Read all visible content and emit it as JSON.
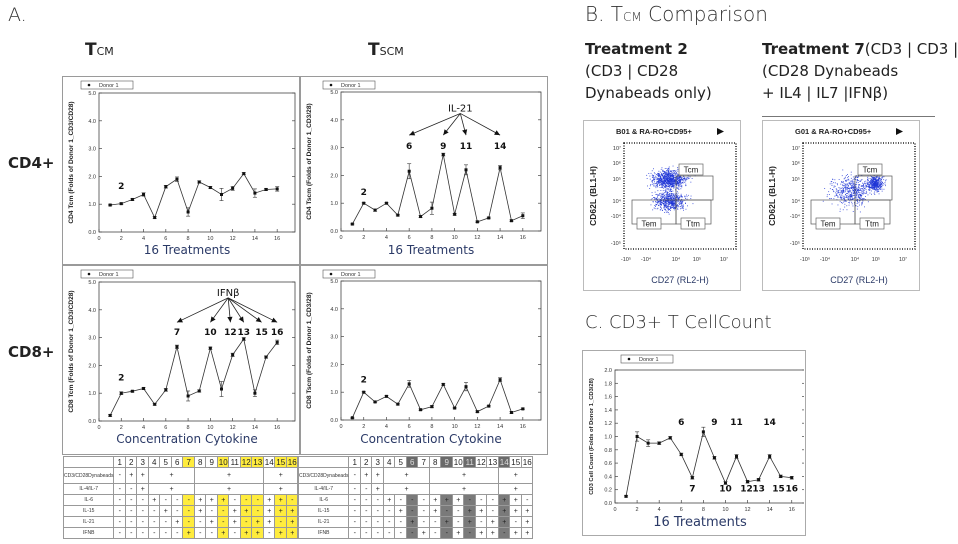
{
  "panel_a": {
    "letter": "A.",
    "col_tcm": {
      "main": "T",
      "sub": "CM"
    },
    "col_tscm": {
      "main": "T",
      "sub": "SCM"
    },
    "row_cd4": "CD4+",
    "row_cd8": "CD8+"
  },
  "panel_b": {
    "title_prefix": "B. T",
    "title_sub": "CM",
    "title_suffix": " Comparison",
    "t2_bold": "Treatment 2",
    "t2_line2": "(CD3 | CD28",
    "t2_line3": "Dynabeads only)",
    "t7_bold": "Treatment 7",
    "t7_rest1": "(CD3 | CD3 |",
    "t7_line2": "(CD28 Dynabeads",
    "t7_line3": "+ IL4 | IL7 |IFNβ)",
    "flow_plots": [
      {
        "title": "B01 & RA-RO+CD95+",
        "pattern": "dense-wide"
      },
      {
        "title": "G01 & RA-RO+CD95+",
        "pattern": "tcm-enriched"
      }
    ],
    "flow_xlabel": "CD27 (RL2-H)",
    "flow_ylabel": "CD62L (BL1-H)",
    "flow_xticks": [
      "-10⁵",
      "-10⁴",
      "10⁴",
      "10⁵",
      "10⁷"
    ],
    "flow_yticks": [
      "10⁷",
      "10⁶",
      "10⁵",
      "10⁴",
      "-10⁴",
      "-10⁵"
    ],
    "gates": [
      "Tcm",
      "Tem",
      "Ttm"
    ],
    "dot_color": "#1f35d6"
  },
  "panel_c": {
    "title": "C. CD3+ T CellCount"
  },
  "chart_data": [
    {
      "id": "cd4-tcm",
      "type": "line",
      "legend": "Donor 1",
      "ylabel": "CD4 Tcm (Folds of Donor 1_CD3/CD28)",
      "xlabel": "16 Treatments",
      "ylim": [
        0,
        5
      ],
      "yticks": [
        "0.0",
        "1.0",
        "2.0",
        "3.0",
        "4.0",
        "5.0"
      ],
      "ytick_values": [
        0,
        1,
        2,
        3,
        4,
        5
      ],
      "xlim": [
        0,
        17.6
      ],
      "xticks": [
        0,
        2,
        4,
        6,
        8,
        10,
        12,
        14,
        16
      ],
      "x": [
        1,
        2,
        3,
        4,
        5,
        6,
        7,
        8,
        9,
        10,
        11,
        12,
        13,
        14,
        15,
        16
      ],
      "values": [
        0.97,
        1.02,
        1.17,
        1.35,
        0.52,
        1.63,
        1.9,
        0.72,
        1.8,
        1.6,
        1.35,
        1.57,
        2.1,
        1.4,
        1.53,
        1.55
      ],
      "errors": [
        0.03,
        0.03,
        0.04,
        0.06,
        0.03,
        0.05,
        0.08,
        0.15,
        0.04,
        0.03,
        0.22,
        0.07,
        0.04,
        0.15,
        0.04,
        0.08
      ],
      "labels": [
        {
          "text": "2",
          "x": 2,
          "y": 1.55
        }
      ],
      "arrows": []
    },
    {
      "id": "cd4-tscm",
      "type": "line",
      "legend": "Donor 1",
      "ylabel": "CD4 Tscm (Folds of Donor 1_CD3/28)",
      "xlabel": "16 Treatments",
      "ylim": [
        0,
        5
      ],
      "yticks": [
        "0.0",
        "1.0",
        "2.0",
        "3.0",
        "4.0",
        "5.0"
      ],
      "ytick_values": [
        0,
        1,
        2,
        3,
        4,
        5
      ],
      "xlim": [
        0,
        17.6
      ],
      "xticks": [
        0,
        2,
        4,
        6,
        8,
        10,
        12,
        14,
        16
      ],
      "x": [
        1,
        2,
        3,
        4,
        5,
        6,
        7,
        8,
        9,
        10,
        11,
        12,
        13,
        14,
        15,
        16
      ],
      "values": [
        0.25,
        1.0,
        0.75,
        1.0,
        0.57,
        2.15,
        0.52,
        0.82,
        2.75,
        0.6,
        2.2,
        0.33,
        0.47,
        2.28,
        0.37,
        0.55
      ],
      "errors": [
        0.03,
        0.03,
        0.04,
        0.03,
        0.03,
        0.27,
        0.03,
        0.22,
        0.05,
        0.03,
        0.18,
        0.03,
        0.03,
        0.08,
        0.03,
        0.1
      ],
      "labels": [
        {
          "text": "2",
          "x": 2,
          "y": 1.3
        }
      ],
      "arrows": [
        {
          "source": "IL-21",
          "sx": 10.5,
          "sy": 4.3,
          "targets": [
            {
              "text": "6",
              "x": 6
            },
            {
              "text": "9",
              "x": 9
            },
            {
              "text": "11",
              "x": 11
            },
            {
              "text": "14",
              "x": 14
            }
          ],
          "head_y": 3.45,
          "num_y": 2.95
        }
      ]
    },
    {
      "id": "cd8-tcm",
      "type": "line",
      "legend": "Donor 1",
      "ylabel": "CD8 Tcm (Folds of Donor 1_CD3/CD28)",
      "xlabel": "Concentration Cytokine",
      "ylim": [
        0,
        5
      ],
      "yticks": [
        "0.0",
        "1.0",
        "2.0",
        "3.0",
        "4.0",
        "5.0"
      ],
      "ytick_values": [
        0,
        1,
        2,
        3,
        4,
        5
      ],
      "xlim": [
        0,
        17.6
      ],
      "xticks": [
        0,
        2,
        4,
        6,
        8,
        10,
        12,
        14,
        16
      ],
      "x": [
        1,
        2,
        3,
        4,
        5,
        6,
        7,
        8,
        9,
        10,
        11,
        12,
        13,
        14,
        15,
        16
      ],
      "values": [
        0.2,
        1.0,
        1.07,
        1.17,
        0.6,
        1.12,
        2.67,
        0.9,
        1.08,
        2.62,
        1.15,
        2.38,
        2.95,
        1.0,
        2.3,
        2.83
      ],
      "errors": [
        0.03,
        0.05,
        0.03,
        0.04,
        0.03,
        0.05,
        0.06,
        0.18,
        0.04,
        0.04,
        0.27,
        0.06,
        0.05,
        0.12,
        0.04,
        0.08
      ],
      "labels": [
        {
          "text": "2",
          "x": 2,
          "y": 1.45
        }
      ],
      "arrows": [
        {
          "source": "IFNβ",
          "sx": 11.6,
          "sy": 4.5,
          "targets": [
            {
              "text": "7",
              "x": 7
            },
            {
              "text": "10",
              "x": 10
            },
            {
              "text": "12",
              "x": 11.8
            },
            {
              "text": "13",
              "x": 13
            },
            {
              "text": "15",
              "x": 14.6
            },
            {
              "text": "16",
              "x": 16
            }
          ],
          "head_y": 3.55,
          "num_y": 3.1
        }
      ]
    },
    {
      "id": "cd8-tscm",
      "type": "line",
      "legend": "Donor 1",
      "ylabel": "CD8 Tscm (Folds of Donor 1_CD3/28)",
      "xlabel": "Concentration Cytokine",
      "ylim": [
        0,
        5
      ],
      "yticks": [
        "0.0",
        "1.0",
        "2.0",
        "3.0",
        "4.0",
        "5.0"
      ],
      "ytick_values": [
        0,
        1,
        2,
        3,
        4,
        5
      ],
      "xlim": [
        0,
        17.6
      ],
      "xticks": [
        0,
        2,
        4,
        6,
        8,
        10,
        12,
        14,
        16
      ],
      "x": [
        1,
        2,
        3,
        4,
        5,
        6,
        7,
        8,
        9,
        10,
        11,
        12,
        13,
        14,
        15,
        16
      ],
      "values": [
        0.08,
        1.0,
        0.65,
        0.85,
        0.57,
        1.3,
        0.37,
        0.48,
        1.28,
        0.43,
        1.2,
        0.3,
        0.5,
        1.45,
        0.27,
        0.4
      ],
      "errors": [
        0.02,
        0.03,
        0.03,
        0.03,
        0.03,
        0.12,
        0.03,
        0.04,
        0.03,
        0.03,
        0.15,
        0.03,
        0.03,
        0.07,
        0.03,
        0.03
      ],
      "labels": [
        {
          "text": "2",
          "x": 2,
          "y": 1.35
        }
      ],
      "arrows": []
    },
    {
      "id": "cd3-count",
      "type": "line",
      "legend": "Donor 1",
      "ylabel": "CD3 Cell Count (Folds of Donor 1_CD3/28)",
      "xlabel": "16 Treatments",
      "ylim": [
        0,
        2
      ],
      "yticks": [
        "0.0",
        "0.2",
        "0.4",
        "0.6",
        "0.8",
        "1.0",
        "1.2",
        "1.4",
        "1.6",
        "1.8",
        "2.0"
      ],
      "ytick_values": [
        0,
        0.2,
        0.4,
        0.6,
        0.8,
        1.0,
        1.2,
        1.4,
        1.6,
        1.8,
        2.0
      ],
      "xlim": [
        0,
        17.2
      ],
      "xticks": [
        0,
        2,
        4,
        6,
        8,
        10,
        12,
        14,
        16
      ],
      "x": [
        1,
        2,
        3,
        4,
        5,
        6,
        7,
        8,
        9,
        10,
        11,
        12,
        13,
        14,
        15,
        16
      ],
      "values": [
        0.1,
        1.0,
        0.9,
        0.9,
        0.98,
        0.73,
        0.38,
        1.07,
        0.68,
        0.3,
        0.7,
        0.32,
        0.35,
        0.7,
        0.4,
        0.38
      ],
      "errors": [
        0.01,
        0.07,
        0.05,
        0.02,
        0.02,
        0.02,
        0.02,
        0.07,
        0.02,
        0.02,
        0.03,
        0.02,
        0.02,
        0.03,
        0.02,
        0.02
      ],
      "labels": [
        {
          "text": "6",
          "x": 6,
          "y": 1.17
        },
        {
          "text": "9",
          "x": 9,
          "y": 1.17
        },
        {
          "text": "11",
          "x": 11,
          "y": 1.17
        },
        {
          "text": "14",
          "x": 14,
          "y": 1.17
        },
        {
          "text": "7",
          "x": 7,
          "y": 0.17
        },
        {
          "text": "10",
          "x": 10,
          "y": 0.17
        },
        {
          "text": "12",
          "x": 11.9,
          "y": 0.17
        },
        {
          "text": "13",
          "x": 13,
          "y": 0.17
        },
        {
          "text": "15",
          "x": 14.8,
          "y": 0.17
        },
        {
          "text": "16",
          "x": 16,
          "y": 0.17
        }
      ],
      "arrows": []
    }
  ],
  "tables": [
    {
      "highlight": [
        7,
        10,
        12,
        13,
        15,
        16
      ],
      "highlight_color": "#ffec3d",
      "columns": [
        "1",
        "2",
        "3",
        "4",
        "5",
        "6",
        "7",
        "8",
        "9",
        "10",
        "11",
        "12",
        "13",
        "14",
        "15",
        "16"
      ],
      "grouped_rows": [
        {
          "label": "CD3/CD28Dynabeads",
          "cells": [
            "-",
            "+",
            "+",
            "+",
            "+",
            "+"
          ]
        },
        {
          "label": "IL-4/IL-7",
          "cells": [
            "-",
            "-",
            "+",
            "+",
            "+",
            "+"
          ]
        }
      ],
      "rows": [
        {
          "label": "IL-6",
          "cells": [
            "-",
            "-",
            "-",
            "+",
            "-",
            "-",
            "-",
            "+",
            "+",
            "+",
            "-",
            "-",
            "-",
            "+",
            "+",
            "-"
          ]
        },
        {
          "label": "IL-15",
          "cells": [
            "-",
            "-",
            "-",
            "-",
            "+",
            "-",
            "-",
            "+",
            "-",
            "-",
            "+",
            "+",
            "-",
            "+",
            "+",
            "+"
          ]
        },
        {
          "label": "IL-21",
          "cells": [
            "-",
            "-",
            "-",
            "-",
            "-",
            "+",
            "-",
            "-",
            "+",
            "-",
            "+",
            "-",
            "+",
            "+",
            "-",
            "+"
          ]
        },
        {
          "label": "IFNB",
          "cells": [
            "-",
            "-",
            "-",
            "-",
            "-",
            "-",
            "+",
            "-",
            "-",
            "+",
            "-",
            "+",
            "+",
            "-",
            "+",
            "+"
          ]
        }
      ]
    },
    {
      "highlight": [
        6,
        9,
        11,
        14
      ],
      "highlight_color": "#7a7a7a",
      "columns": [
        "1",
        "2",
        "3",
        "4",
        "5",
        "6",
        "7",
        "8",
        "9",
        "10",
        "11",
        "12",
        "13",
        "14",
        "15",
        "16"
      ],
      "grouped_rows": [
        {
          "label": "CD3/CD28Dynabeads",
          "cells": [
            "-",
            "+",
            "+",
            "+",
            "+",
            "+"
          ]
        },
        {
          "label": "IL-4/IL-7",
          "cells": [
            "-",
            "-",
            "+",
            "+",
            "+",
            "+"
          ]
        }
      ],
      "rows": [
        {
          "label": "IL-6",
          "cells": [
            "-",
            "-",
            "-",
            "+",
            "-",
            "-",
            "-",
            "+",
            "+",
            "+",
            "-",
            "-",
            "-",
            "+",
            "+",
            "-"
          ]
        },
        {
          "label": "IL-15",
          "cells": [
            "-",
            "-",
            "-",
            "-",
            "+",
            "-",
            "-",
            "+",
            "-",
            "-",
            "+",
            "+",
            "-",
            "+",
            "+",
            "+"
          ]
        },
        {
          "label": "IL-21",
          "cells": [
            "-",
            "-",
            "-",
            "-",
            "-",
            "+",
            "-",
            "-",
            "+",
            "-",
            "+",
            "-",
            "+",
            "+",
            "-",
            "+"
          ]
        },
        {
          "label": "IFNB",
          "cells": [
            "-",
            "-",
            "-",
            "-",
            "-",
            "-",
            "+",
            "-",
            "-",
            "+",
            "-",
            "+",
            "+",
            "-",
            "+",
            "+"
          ]
        }
      ]
    }
  ]
}
